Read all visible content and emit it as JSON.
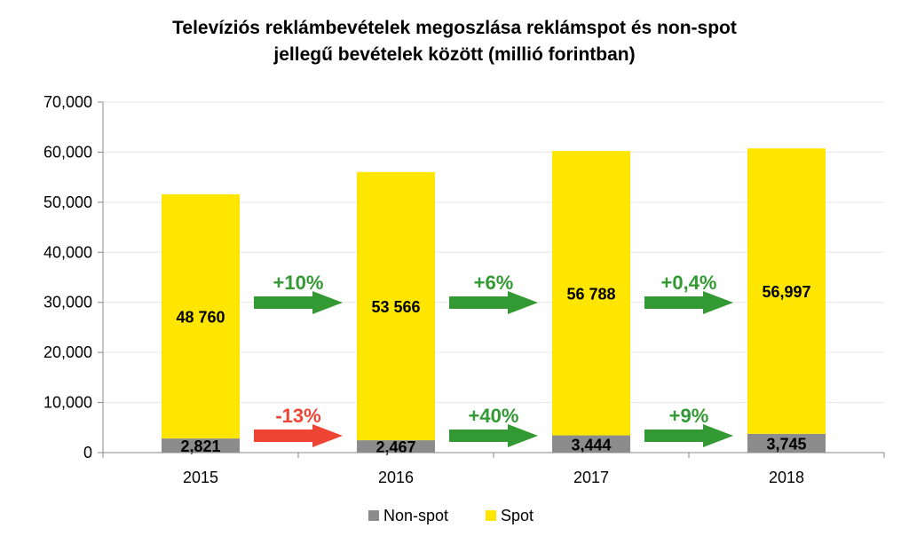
{
  "chart_data": {
    "type": "bar",
    "stacked": true,
    "title_lines": [
      "Televíziós reklámbevételek megoszlása reklámspot és non-spot",
      "jellegű bevételek között (millió forintban)"
    ],
    "categories": [
      "2015",
      "2016",
      "2017",
      "2018"
    ],
    "series": [
      {
        "name": "Non-spot",
        "color": "#8c8c8c",
        "values": [
          2821,
          2467,
          3444,
          3745
        ],
        "labels": [
          "2,821",
          "2,467",
          "3,444",
          "3,745"
        ]
      },
      {
        "name": "Spot",
        "color": "#ffe600",
        "values": [
          48760,
          53566,
          56788,
          56997
        ],
        "labels": [
          "48 760",
          "53 566",
          "56 788",
          "56,997"
        ]
      }
    ],
    "ylim": [
      0,
      70000
    ],
    "yticks": [
      0,
      10000,
      20000,
      30000,
      40000,
      50000,
      60000,
      70000
    ],
    "ytick_labels": [
      "0",
      "10,000",
      "20,000",
      "30,000",
      "40,000",
      "50,000",
      "60,000",
      "70,000"
    ],
    "grid": true,
    "legend_position": "bottom",
    "annotations": {
      "spot_growth": [
        {
          "text": "+10%",
          "color": "#339933"
        },
        {
          "text": "+6%",
          "color": "#339933"
        },
        {
          "text": "+0,4%",
          "color": "#339933"
        }
      ],
      "nonspot_growth": [
        {
          "text": "-13%",
          "color": "#ee4433"
        },
        {
          "text": "+40%",
          "color": "#339933"
        },
        {
          "text": "+9%",
          "color": "#339933"
        }
      ]
    }
  }
}
